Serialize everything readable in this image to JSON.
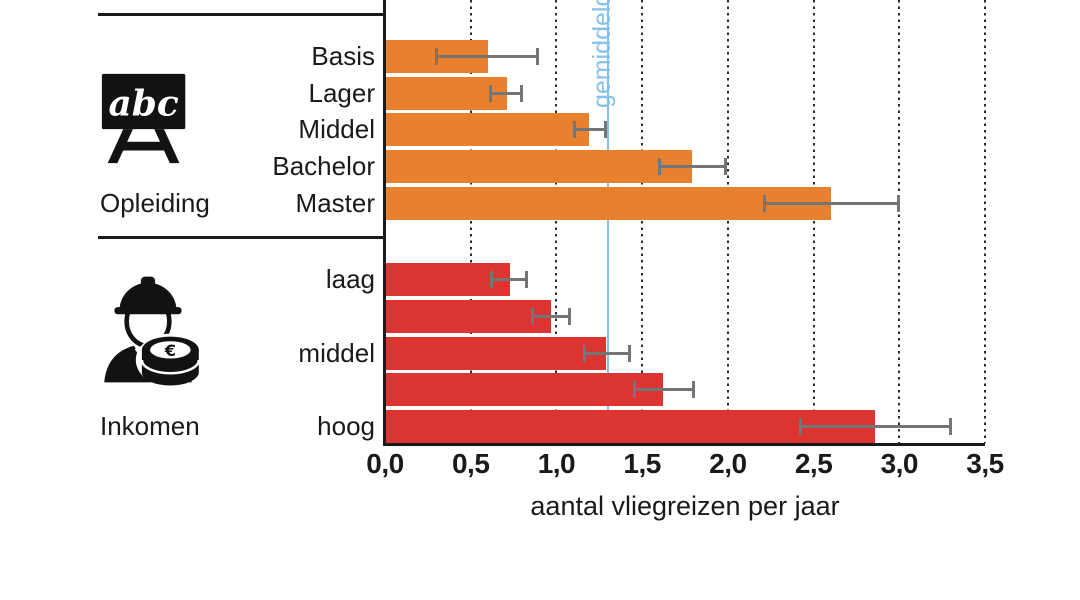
{
  "chart_data": {
    "type": "bar",
    "orientation": "horizontal",
    "xlabel": "aantal vliegreizen per jaar",
    "xlim": [
      0,
      3.5
    ],
    "xtick_values": [
      0,
      0.5,
      1,
      1.5,
      2,
      2.5,
      3,
      3.5
    ],
    "xtick_labels": [
      "0,0",
      "0,5",
      "1,0",
      "1,5",
      "2,0",
      "2,5",
      "3,0",
      "3,5"
    ],
    "gridline_values": [
      0.5,
      1,
      1.5,
      2,
      2.5,
      3,
      3.5
    ],
    "gridline_style": "dotted",
    "reference_line": {
      "value": 1.3,
      "label": "gemiddelde",
      "color": "#85c2e6"
    },
    "error_bar_color": "#757575",
    "groups": [
      {
        "name": "Opleiding",
        "icon": "chalkboard-abc-icon",
        "bar_color": "#e8802d",
        "bars": [
          {
            "label": "Basis",
            "value": 0.6,
            "ci": [
              0.3,
              0.89
            ]
          },
          {
            "label": "Lager",
            "value": 0.71,
            "ci": [
              0.61,
              0.8
            ]
          },
          {
            "label": "Middel",
            "value": 1.19,
            "ci": [
              1.1,
              1.29
            ]
          },
          {
            "label": "Bachelor",
            "value": 1.79,
            "ci": [
              1.6,
              1.99
            ]
          },
          {
            "label": "Master",
            "value": 2.6,
            "ci": [
              2.21,
              3.0
            ]
          }
        ]
      },
      {
        "name": "Inkomen",
        "icon": "worker-coins-icon",
        "bar_color": "#dc3431",
        "bars": [
          {
            "label": "laag",
            "value": 0.73,
            "ci": [
              0.62,
              0.83
            ]
          },
          {
            "label": "",
            "value": 0.97,
            "ci": [
              0.86,
              1.08
            ]
          },
          {
            "label": "middel",
            "value": 1.29,
            "ci": [
              1.16,
              1.43
            ]
          },
          {
            "label": "",
            "value": 1.62,
            "ci": [
              1.45,
              1.8
            ]
          },
          {
            "label": "hoog",
            "value": 2.86,
            "ci": [
              2.42,
              3.3
            ]
          }
        ]
      }
    ]
  }
}
